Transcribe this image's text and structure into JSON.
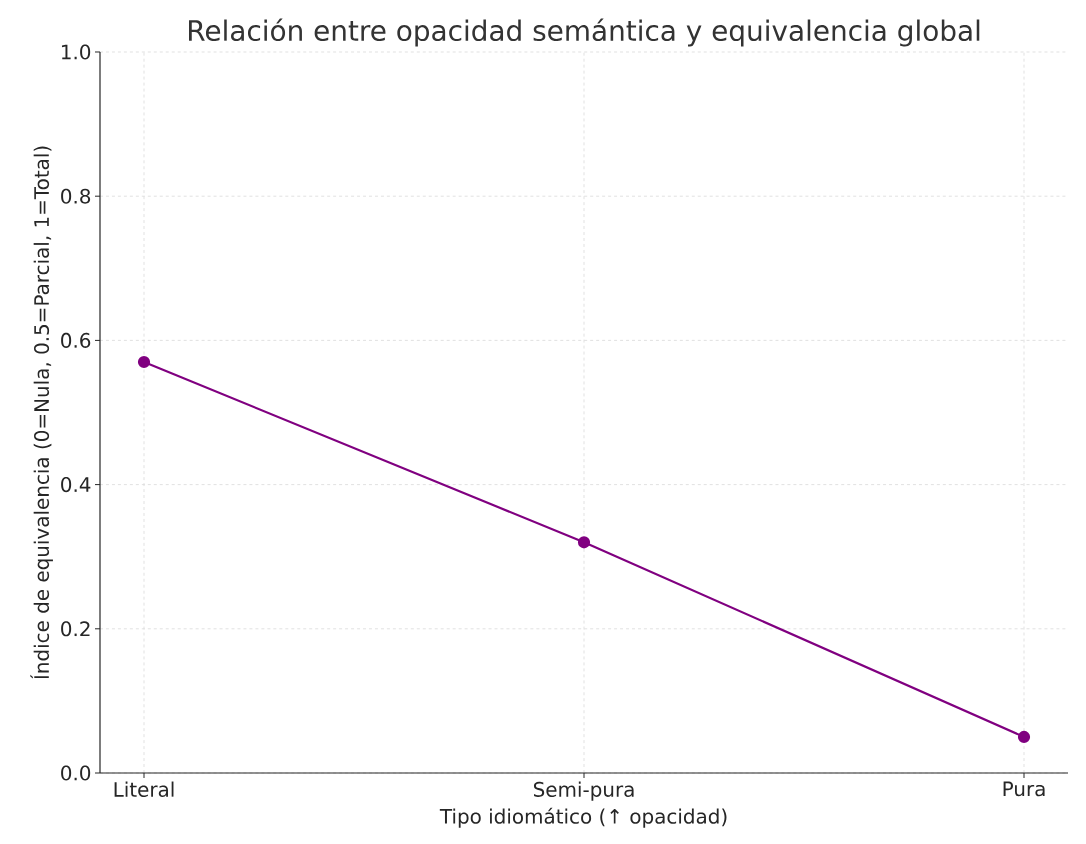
{
  "chart_data": {
    "type": "line",
    "title": "Relación entre opacidad semántica y equivalencia global",
    "xlabel": "Tipo idiomático (↑ opacidad)",
    "ylabel": "Índice de equivalencia (0=Nula, 0.5=Parcial, 1=Total)",
    "categories": [
      "Literal",
      "Semi-pura",
      "Pura"
    ],
    "series": [
      {
        "color": "#800080",
        "values": [
          0.57,
          0.32,
          0.05
        ]
      }
    ],
    "ylim": [
      0,
      1
    ],
    "yticks": [
      {
        "value": 0,
        "label": "0.0"
      },
      {
        "value": 0.2,
        "label": "0.2"
      },
      {
        "value": 0.4,
        "label": "0.4"
      },
      {
        "value": 0.6,
        "label": "0.6"
      },
      {
        "value": 0.8,
        "label": "0.8"
      },
      {
        "value": 1,
        "label": "1.0"
      }
    ],
    "grid": true,
    "marker": "circle",
    "line_style": "solid"
  }
}
